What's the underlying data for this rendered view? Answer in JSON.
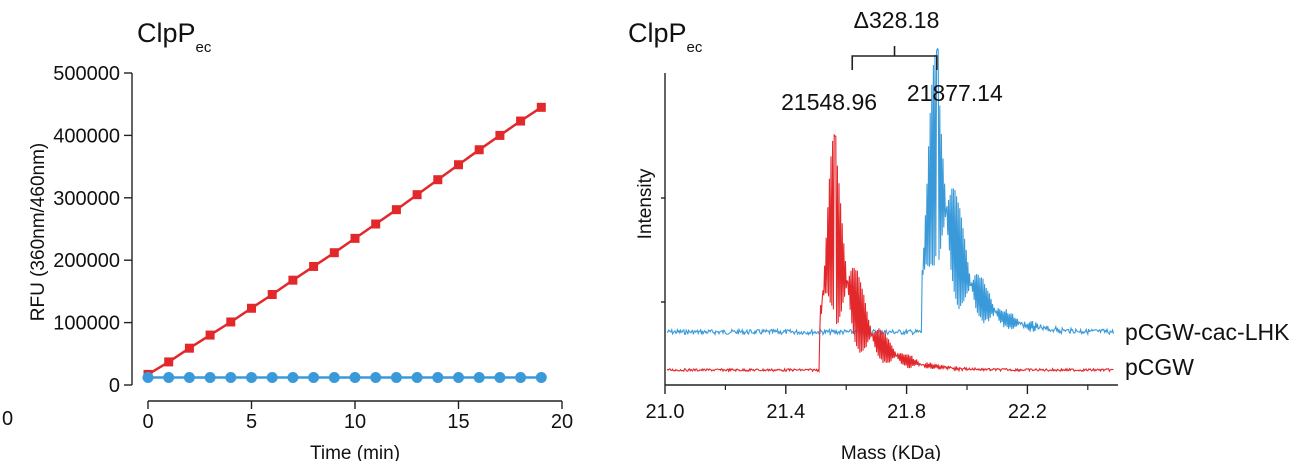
{
  "page_edge_label": "0",
  "chart_data": [
    {
      "type": "line",
      "title_main": "ClpP",
      "title_sub": "ec",
      "xlabel": "Time (min)",
      "ylabel": "RFU (360nm/460nm)",
      "xlim": [
        0,
        20
      ],
      "ylim": [
        0,
        500000
      ],
      "xticks": [
        0,
        5,
        10,
        15,
        20
      ],
      "yticks": [
        0,
        100000,
        200000,
        300000,
        400000,
        500000
      ],
      "x": [
        0,
        1,
        2,
        3,
        4,
        5,
        6,
        7,
        8,
        9,
        10,
        11,
        12,
        13,
        14,
        15,
        16,
        17,
        18,
        19
      ],
      "series": [
        {
          "color": "#e3282c",
          "marker": "square",
          "values": [
            17000,
            37000,
            59000,
            80000,
            101000,
            123000,
            145000,
            168000,
            190000,
            212000,
            235000,
            258000,
            281000,
            305000,
            329000,
            353000,
            377000,
            400000,
            423000,
            445000
          ]
        },
        {
          "color": "#3a9ad9",
          "marker": "circle",
          "values": [
            12000,
            12000,
            12000,
            12000,
            12000,
            12000,
            12000,
            12000,
            12000,
            12000,
            12000,
            12000,
            12000,
            12000,
            12000,
            12000,
            12000,
            12000,
            12000,
            12000
          ]
        }
      ]
    },
    {
      "type": "line",
      "title_main": "ClpP",
      "title_sub": "ec",
      "xlabel": "Mass (KDa)",
      "ylabel": "Intensity",
      "xlim": [
        21.0,
        22.5
      ],
      "xticks": [
        21.0,
        21.4,
        21.8,
        22.2
      ],
      "xtick_labels": [
        "21.0",
        "21.4",
        "21.8",
        "22.2"
      ],
      "minor_xticks": [
        21.2,
        21.6,
        22.0,
        22.4
      ],
      "series": [
        {
          "name": "pCGW-cac-LHK",
          "color": "#3a9ad9",
          "peak_mass": 21.9,
          "peak_label": "21877.14"
        },
        {
          "name": "pCGW",
          "color": "#e3282c",
          "peak_mass": 21.56,
          "peak_label": "21548.96"
        }
      ],
      "annotations": [
        {
          "text": "Δ328.18",
          "from_mass": 21.62,
          "to_mass": 21.9
        }
      ]
    }
  ]
}
